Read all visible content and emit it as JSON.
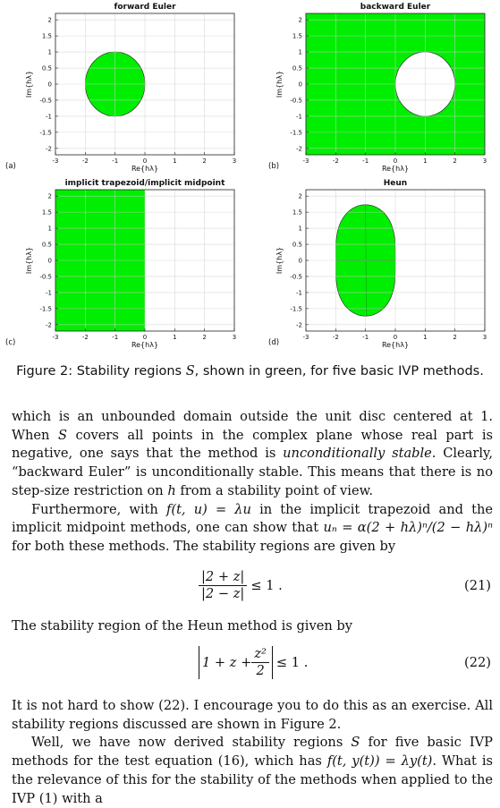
{
  "figure": {
    "xlabel": "Re{hλ}",
    "ylabel": "Im{hλ}",
    "xticks": [
      "-3",
      "-2",
      "-1",
      "0",
      "1",
      "2",
      "3"
    ],
    "yticks": [
      "2",
      "1.5",
      "1",
      "0.5",
      "0",
      "-0.5",
      "-1",
      "-1.5",
      "-2"
    ],
    "fill_color": "#00ee00"
  },
  "chart_data": [
    {
      "type": "area",
      "panel": "(a)",
      "title": "forward Euler",
      "xlabel": "Re{hλ}",
      "ylabel": "Im{hλ}",
      "xlim": [
        -3,
        3
      ],
      "ylim": [
        -2.2,
        2.2
      ],
      "region": "|1 + z| ≤ 1",
      "grid": true
    },
    {
      "type": "area",
      "panel": "(b)",
      "title": "backward Euler",
      "xlabel": "Re{hλ}",
      "ylabel": "Im{hλ}",
      "xlim": [
        -3,
        3
      ],
      "ylim": [
        -2.2,
        2.2
      ],
      "region": "|1 − z| ≥ 1",
      "grid": true
    },
    {
      "type": "area",
      "panel": "(c)",
      "title": "implicit trapezoid/implicit midpoint",
      "xlabel": "Re{hλ}",
      "ylabel": "Im{hλ}",
      "xlim": [
        -3,
        3
      ],
      "ylim": [
        -2.2,
        2.2
      ],
      "region": "Re z ≤ 0",
      "grid": true
    },
    {
      "type": "area",
      "panel": "(d)",
      "title": "Heun",
      "xlabel": "Re{hλ}",
      "ylabel": "Im{hλ}",
      "xlim": [
        -3,
        3
      ],
      "ylim": [
        -2.2,
        2.2
      ],
      "region": "|1 + z + z²/2| ≤ 1",
      "grid": true
    }
  ],
  "caption": {
    "prefix": "Figure 2: Stability regions ",
    "var": "S",
    "suffix": ", shown in green, for five basic IVP methods."
  },
  "text": {
    "p1_a": "which is an unbounded domain outside the unit disc centered at 1. When ",
    "p1_S": "S",
    "p1_b": " covers all points in the complex plane whose real part is negative, one says that the method is ",
    "p1_em": "unconditionally stable",
    "p1_c": ". Clearly, “backward Euler” is unconditionally stable. This means that there is no step-size restriction on ",
    "p1_h": "h",
    "p1_d": " from a stability point of view.",
    "p2_a": "Furthermore, with ",
    "p2_m1": "f(t, u) = λu",
    "p2_b": " in the implicit trapezoid and the implicit midpoint methods, one can show that ",
    "p2_m2": "uₙ = α(2 + hλ)ⁿ/(2 − hλ)ⁿ",
    "p2_c": " for both these methods. The stability regions are given by",
    "eq21_num": "|2 + z|",
    "eq21_den": "|2 − z|",
    "eq21_rel": "≤ 1 .",
    "eq21_label": "(21)",
    "p3": "The stability region of the Heun method is given by",
    "eq22_left": "1 + z + ",
    "eq22_num": "z²",
    "eq22_den": "2",
    "eq22_rel": "≤ 1 .",
    "eq22_label": "(22)",
    "p4": "It is not hard to show (22). I encourage you to do this as an exercise. All stability regions discussed are shown in Figure 2.",
    "p5_a": "Well, we have now derived stability regions ",
    "p5_S": "S",
    "p5_b": " for five basic IVP methods for the test equation (16), which has ",
    "p5_m": "f(t, y(t)) = λy(t)",
    "p5_c": ". What is the relevance of this for the stability of the methods when applied to the IVP (1) with a"
  }
}
